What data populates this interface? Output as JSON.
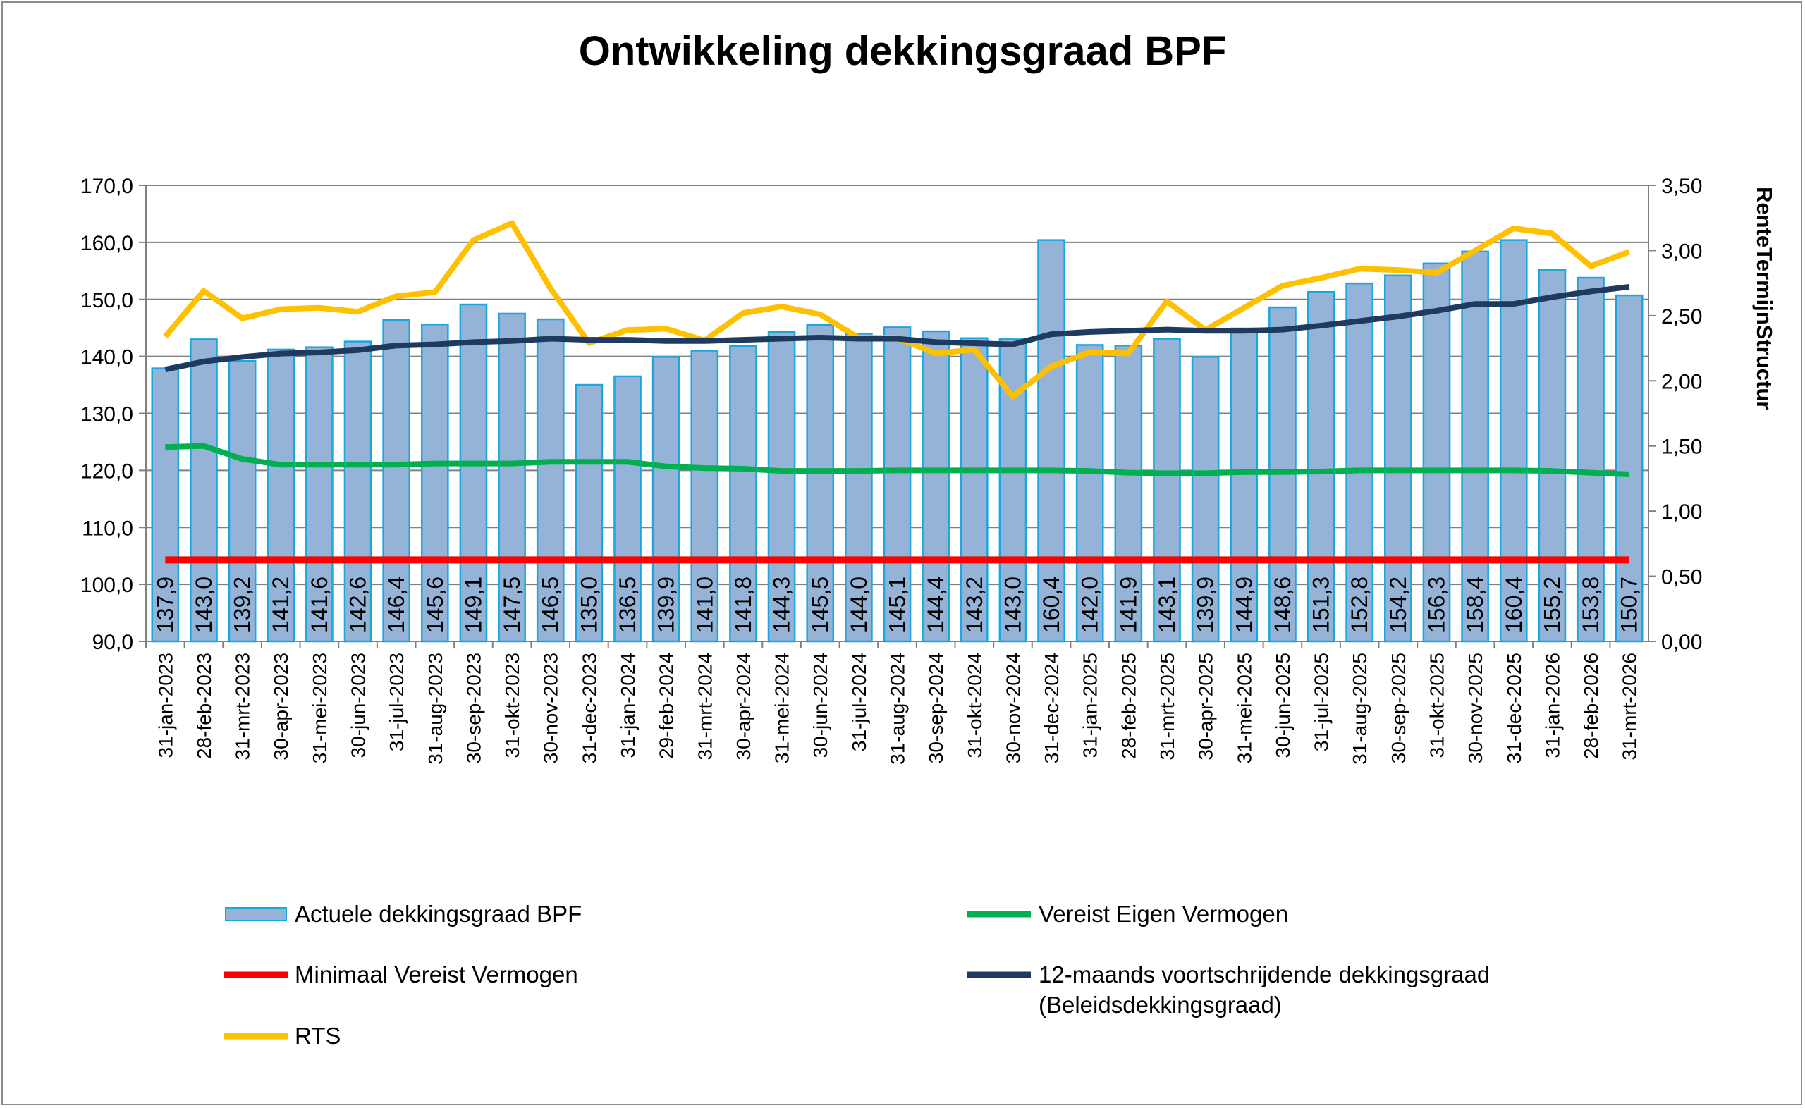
{
  "chart_data": {
    "type": "bar",
    "title": "Ontwikkeling dekkingsgraad BPF",
    "xlabel": "",
    "ylabel": "",
    "y2label": "RenteTermijnStructur",
    "ylim": [
      90,
      170
    ],
    "yticks": [
      "90,0",
      "100,0",
      "110,0",
      "120,0",
      "130,0",
      "140,0",
      "150,0",
      "160,0",
      "170,0"
    ],
    "y2lim": [
      0,
      3.5
    ],
    "y2ticks": [
      "0,00",
      "0,50",
      "1,00",
      "1,50",
      "2,00",
      "2,50",
      "3,00",
      "3,50"
    ],
    "grid": true,
    "legend_position": "bottom",
    "colors": {
      "bar_fill": "#95B3D7",
      "bar_stroke": "#1AA7E0",
      "green": "#00B050",
      "red": "#FF0000",
      "navy": "#1F3A5F",
      "yellow": "#FFC000"
    },
    "categories": [
      "31-jan-2023",
      "28-feb-2023",
      "31-mrt-2023",
      "30-apr-2023",
      "31-mei-2023",
      "30-jun-2023",
      "31-jul-2023",
      "31-aug-2023",
      "30-sep-2023",
      "31-okt-2023",
      "30-nov-2023",
      "31-dec-2023",
      "31-jan-2024",
      "29-feb-2024",
      "31-mrt-2024",
      "30-apr-2024",
      "31-mei-2024",
      "30-jun-2024",
      "31-jul-2024",
      "31-aug-2024",
      "30-sep-2024",
      "31-okt-2024",
      "30-nov-2024",
      "31-dec-2024",
      "31-jan-2025",
      "28-feb-2025",
      "31-mrt-2025",
      "30-apr-2025",
      "31-mei-2025",
      "30-jun-2025",
      "31-jul-2025",
      "31-aug-2025",
      "30-sep-2025",
      "31-okt-2025",
      "30-nov-2025",
      "31-dec-2025",
      "31-jan-2026",
      "28-feb-2026",
      "31-mrt-2026"
    ],
    "series": [
      {
        "name": "Actuele dekkingsgraad BPF",
        "type": "bar",
        "axis": "left",
        "values": [
          137.9,
          143.0,
          139.2,
          141.2,
          141.6,
          142.6,
          146.4,
          145.6,
          149.1,
          147.5,
          146.5,
          135.0,
          136.5,
          139.9,
          141.0,
          141.8,
          144.3,
          145.5,
          144.0,
          145.1,
          144.4,
          143.2,
          143.0,
          160.4,
          142.0,
          141.9,
          143.1,
          139.9,
          144.9,
          148.6,
          151.3,
          152.8,
          154.2,
          156.3,
          158.4,
          160.4,
          155.2,
          153.8,
          150.7
        ],
        "labels": [
          "137,9",
          "143,0",
          "139,2",
          "141,2",
          "141,6",
          "142,6",
          "146,4",
          "145,6",
          "149,1",
          "147,5",
          "146,5",
          "135,0",
          "136,5",
          "139,9",
          "141,0",
          "141,8",
          "144,3",
          "145,5",
          "144,0",
          "145,1",
          "144,4",
          "143,2",
          "143,0",
          "160,4",
          "142,0",
          "141,9",
          "143,1",
          "139,9",
          "144,9",
          "148,6",
          "151,3",
          "152,8",
          "154,2",
          "156,3",
          "158,4",
          "160,4",
          "155,2",
          "153,8",
          "150,7"
        ]
      },
      {
        "name": "Vereist Eigen Vermogen",
        "type": "line",
        "axis": "left",
        "values": [
          124.1,
          124.3,
          122.0,
          121.0,
          121.0,
          121.0,
          121.0,
          121.2,
          121.2,
          121.2,
          121.5,
          121.5,
          121.5,
          120.7,
          120.4,
          120.3,
          119.9,
          119.9,
          119.9,
          120.0,
          120.0,
          120.0,
          120.0,
          120.0,
          119.9,
          119.6,
          119.5,
          119.5,
          119.7,
          119.7,
          119.8,
          120.0,
          120.0,
          120.0,
          120.0,
          120.0,
          119.9,
          119.6,
          119.3
        ]
      },
      {
        "name": "Minimaal Vereist Vermogen",
        "type": "line",
        "axis": "left",
        "values": [
          104.3,
          104.3,
          104.3,
          104.3,
          104.3,
          104.3,
          104.3,
          104.3,
          104.3,
          104.3,
          104.3,
          104.3,
          104.3,
          104.3,
          104.3,
          104.3,
          104.3,
          104.3,
          104.3,
          104.3,
          104.3,
          104.3,
          104.3,
          104.3,
          104.3,
          104.3,
          104.3,
          104.3,
          104.3,
          104.3,
          104.3,
          104.3,
          104.3,
          104.3,
          104.3,
          104.3,
          104.3,
          104.3,
          104.3
        ]
      },
      {
        "name": "12-maands voortschrijdende dekkingsgraad (Beleidsdekkingsgraad)",
        "type": "line",
        "axis": "left",
        "values": [
          137.7,
          139.1,
          139.9,
          140.5,
          140.7,
          141.1,
          141.9,
          142.1,
          142.5,
          142.7,
          143.1,
          142.9,
          142.9,
          142.7,
          142.7,
          142.9,
          143.1,
          143.3,
          143.1,
          143.1,
          142.5,
          142.3,
          142.1,
          143.9,
          144.3,
          144.5,
          144.7,
          144.5,
          144.5,
          144.7,
          145.4,
          146.2,
          147.0,
          148.0,
          149.2,
          149.2,
          150.4,
          151.4,
          152.2
        ]
      },
      {
        "name": "RTS",
        "type": "line",
        "axis": "right",
        "values": [
          2.34,
          2.69,
          2.48,
          2.55,
          2.56,
          2.53,
          2.65,
          2.68,
          3.08,
          3.21,
          2.71,
          2.29,
          2.39,
          2.4,
          2.31,
          2.52,
          2.57,
          2.51,
          2.33,
          2.33,
          2.21,
          2.24,
          1.88,
          2.11,
          2.22,
          2.21,
          2.61,
          2.39,
          2.56,
          2.73,
          2.79,
          2.86,
          2.85,
          2.83,
          3.0,
          3.17,
          3.13,
          2.88,
          2.99
        ]
      }
    ],
    "legend": {
      "bar": "Actuele dekkingsgraad BPF",
      "green": "Vereist Eigen Vermogen",
      "red": "Minimaal Vereist Vermogen",
      "navy_line1": "12-maands voortschrijdende dekkingsgraad",
      "navy_line2": "(Beleidsdekkingsgraad)",
      "yellow": "RTS"
    }
  }
}
